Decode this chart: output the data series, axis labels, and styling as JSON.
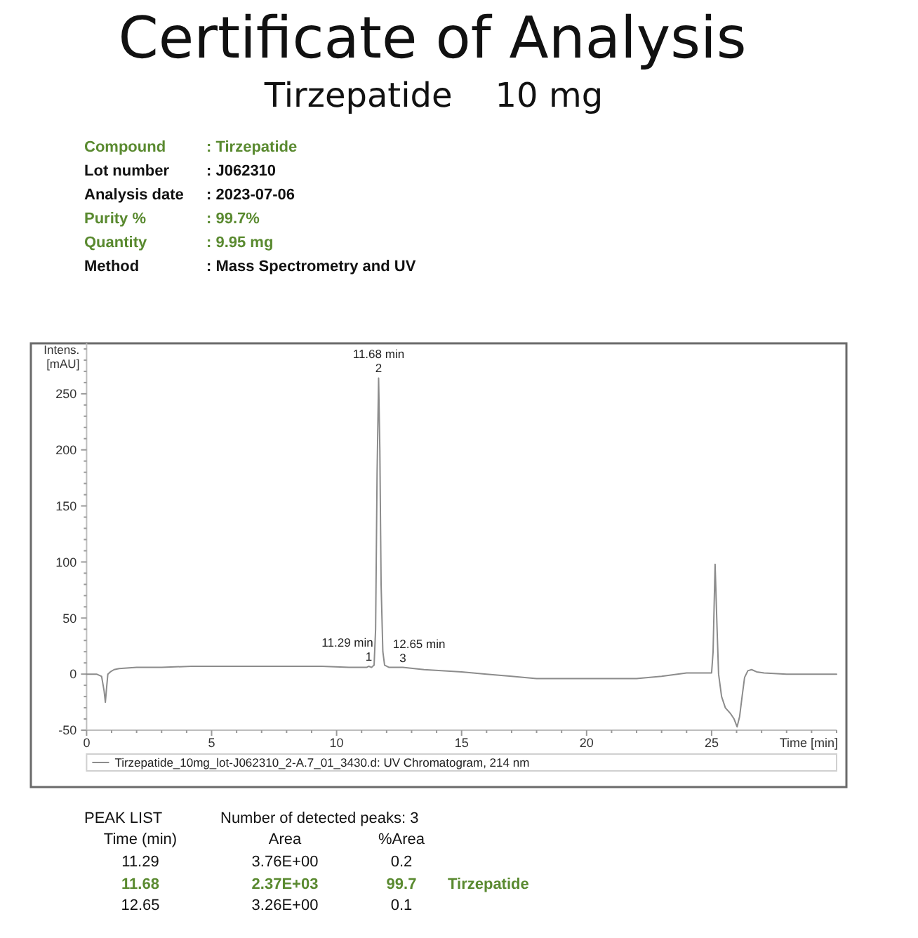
{
  "chart_data": {
    "type": "line",
    "title": "Certificate of Analysis",
    "subtitle": "Tirzepatide    10 mg",
    "xlabel": "Time [min]",
    "ylabel": "Intens. [mAU]",
    "x": [
      0,
      0.4,
      0.6,
      0.7,
      0.75,
      0.8,
      0.85,
      0.95,
      1.1,
      1.3,
      2,
      3,
      4.2,
      6,
      8,
      9.4,
      10.5,
      11.2,
      11.29,
      11.4,
      11.5,
      11.56,
      11.62,
      11.68,
      11.73,
      11.78,
      11.85,
      11.92,
      12.1,
      12.65,
      13.5,
      15,
      16,
      17,
      18,
      20,
      22,
      23,
      24,
      25,
      25.06,
      25.14,
      25.22,
      25.28,
      25.4,
      25.55,
      25.75,
      25.9,
      26.02,
      26.12,
      26.22,
      26.32,
      26.45,
      26.6,
      26.8,
      27.1,
      28,
      30
    ],
    "series": [
      {
        "name": "Tirzepatide_10mg_lot-J062310_2-A.7_01_3430.d: UV Chromatogram, 214 nm",
        "color": "#8c8c8c",
        "values": [
          0,
          0,
          -2,
          -15,
          -25,
          -12,
          0,
          2,
          4,
          5,
          6,
          6,
          7,
          7,
          7,
          7,
          6,
          6,
          7,
          6,
          8,
          40,
          180,
          264,
          200,
          80,
          20,
          8,
          6,
          6,
          4,
          2,
          0,
          -2,
          -4,
          -4,
          -4,
          -2,
          1,
          1,
          20,
          98,
          40,
          0,
          -20,
          -30,
          -35,
          -40,
          -47,
          -38,
          -20,
          -3,
          3,
          4,
          2,
          1,
          0,
          0
        ]
      }
    ],
    "xlim": [
      0,
      30
    ],
    "ylim": [
      -50,
      295
    ],
    "xticks": [
      0,
      {
        "value": 1,
        "label": null
      },
      {
        "value": 2,
        "label": null
      },
      {
        "value": 3,
        "label": null
      },
      {
        "value": 4,
        "label": null
      },
      5,
      {
        "value": 6,
        "label": null
      },
      {
        "value": 7,
        "label": null
      },
      {
        "value": 8,
        "label": null
      },
      {
        "value": 9,
        "label": null
      },
      10,
      {
        "value": 11,
        "label": null
      },
      {
        "value": 12,
        "label": null
      },
      {
        "value": 13,
        "label": null
      },
      {
        "value": 14,
        "label": null
      },
      15,
      {
        "value": 16,
        "label": null
      },
      {
        "value": 17,
        "label": null
      },
      {
        "value": 18,
        "label": null
      },
      {
        "value": 19,
        "label": null
      },
      20,
      {
        "value": 21,
        "label": null
      },
      {
        "value": 22,
        "label": null
      },
      {
        "value": 23,
        "label": null
      },
      {
        "value": 24,
        "label": null
      },
      25,
      {
        "value": 26,
        "label": null
      },
      {
        "value": 27,
        "label": null
      },
      {
        "value": 28,
        "label": null
      },
      {
        "value": 29,
        "label": null
      },
      {
        "value": 30,
        "label": null
      }
    ],
    "yticks": [
      -50,
      {
        "value": -40,
        "label": null
      },
      {
        "value": -30,
        "label": null
      },
      {
        "value": -20,
        "label": null
      },
      {
        "value": -10,
        "label": null
      },
      0,
      {
        "value": 10,
        "label": null
      },
      {
        "value": 20,
        "label": null
      },
      {
        "value": 30,
        "label": null
      },
      {
        "value": 40,
        "label": null
      },
      50,
      {
        "value": 60,
        "label": null
      },
      {
        "value": 70,
        "label": null
      },
      {
        "value": 80,
        "label": null
      },
      {
        "value": 90,
        "label": null
      },
      100,
      {
        "value": 110,
        "label": null
      },
      {
        "value": 120,
        "label": null
      },
      {
        "value": 130,
        "label": null
      },
      {
        "value": 140,
        "label": null
      },
      150,
      {
        "value": 160,
        "label": null
      },
      {
        "value": 170,
        "label": null
      },
      {
        "value": 180,
        "label": null
      },
      {
        "value": 190,
        "label": null
      },
      200,
      {
        "value": 210,
        "label": null
      },
      {
        "value": 220,
        "label": null
      },
      {
        "value": 230,
        "label": null
      },
      {
        "value": 240,
        "label": null
      },
      250,
      {
        "value": 260,
        "label": null
      },
      {
        "value": 270,
        "label": null
      },
      {
        "value": 280,
        "label": null
      },
      {
        "value": 290,
        "label": null
      }
    ],
    "legend": "bottom",
    "annotations": [
      "Compound",
      ": Tirzepatide",
      "Lot number",
      ": J062310",
      "Analysis date",
      ": 2023-07-06",
      "Purity %",
      ": 99.7%",
      "Quantity",
      ": 9.95 mg",
      "Method",
      ": Mass Spectrometry and UV",
      "PEAK LIST",
      "Number of detected peaks: 3",
      "Time (min)",
      "Area",
      "%Area",
      "11.29",
      "3.76E+00",
      "0.2",
      "11.68",
      "2.37E+03",
      "99.7",
      "Tirzepatide",
      "12.65",
      "3.26E+00",
      "0.1",
      {
        "text": "11.68 min",
        "x": 11.68,
        "y": 264
      },
      {
        "text": "2",
        "x": 11.68,
        "y": 264
      },
      {
        "text": "11.29 min",
        "x": 11.29,
        "y": 7
      },
      {
        "text": "1",
        "x": 11.29,
        "y": 7
      },
      {
        "text": "12.65 min",
        "x": 12.65,
        "y": 6
      },
      {
        "text": "3",
        "x": 12.65,
        "y": 6
      }
    ]
  }
}
